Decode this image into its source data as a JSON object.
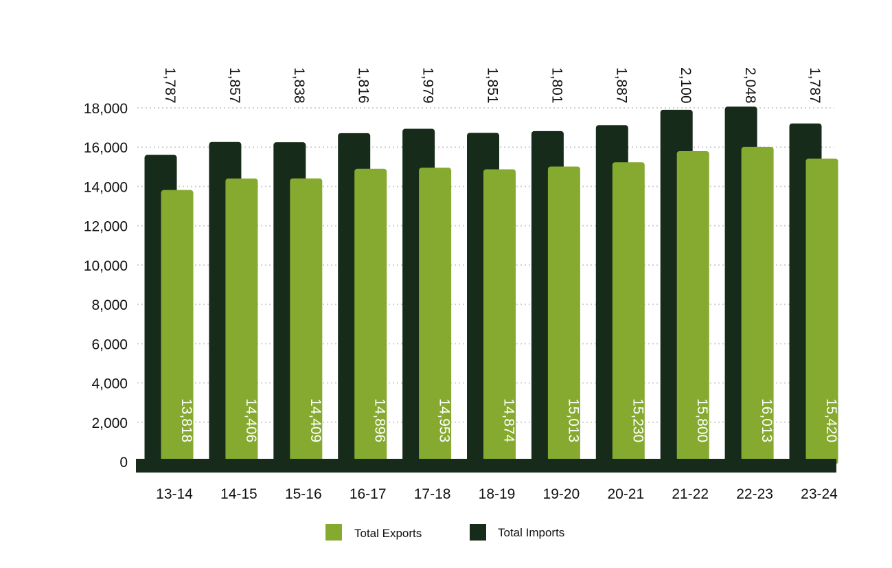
{
  "colors": {
    "exports": "#86a930",
    "imports": "#172b1a",
    "grid": "#cfcfcf",
    "baseline": "#172b1a"
  },
  "chart_data": {
    "type": "bar",
    "categories": [
      "13-14",
      "14-15",
      "15-16",
      "16-17",
      "17-18",
      "18-19",
      "19-20",
      "20-21",
      "21-22",
      "22-23",
      "23-24"
    ],
    "series": [
      {
        "name": "Total Imports",
        "values": [
          15605,
          16263,
          16247,
          16712,
          16932,
          16725,
          16814,
          17117,
          17900,
          18061,
          17207
        ],
        "labels": [
          "1,787",
          "1,857",
          "1,838",
          "1,816",
          "1,979",
          "1,851",
          "1,801",
          "1,887",
          "2,100",
          "2,048",
          "1,787"
        ]
      },
      {
        "name": "Total Exports",
        "values": [
          13818,
          14406,
          14409,
          14896,
          14953,
          14874,
          15013,
          15230,
          15800,
          16013,
          15420
        ],
        "labels": [
          "13,818",
          "14,406",
          "14,409",
          "14,896",
          "14,953",
          "14,874",
          "15,013",
          "15,230",
          "15,800",
          "16,013",
          "15,420"
        ]
      }
    ],
    "yticks": [
      "0",
      "2,000",
      "4,000",
      "6,000",
      "8,000",
      "10,000",
      "12,000",
      "14,000",
      "16,000",
      "18,000"
    ],
    "ylim": [
      0,
      18000
    ],
    "grid": true,
    "legend": {
      "placement": "bottom-center",
      "items": [
        {
          "label": "Total Exports",
          "color": "#86a930"
        },
        {
          "label": "Total Imports",
          "color": "#172b1a"
        }
      ]
    }
  }
}
